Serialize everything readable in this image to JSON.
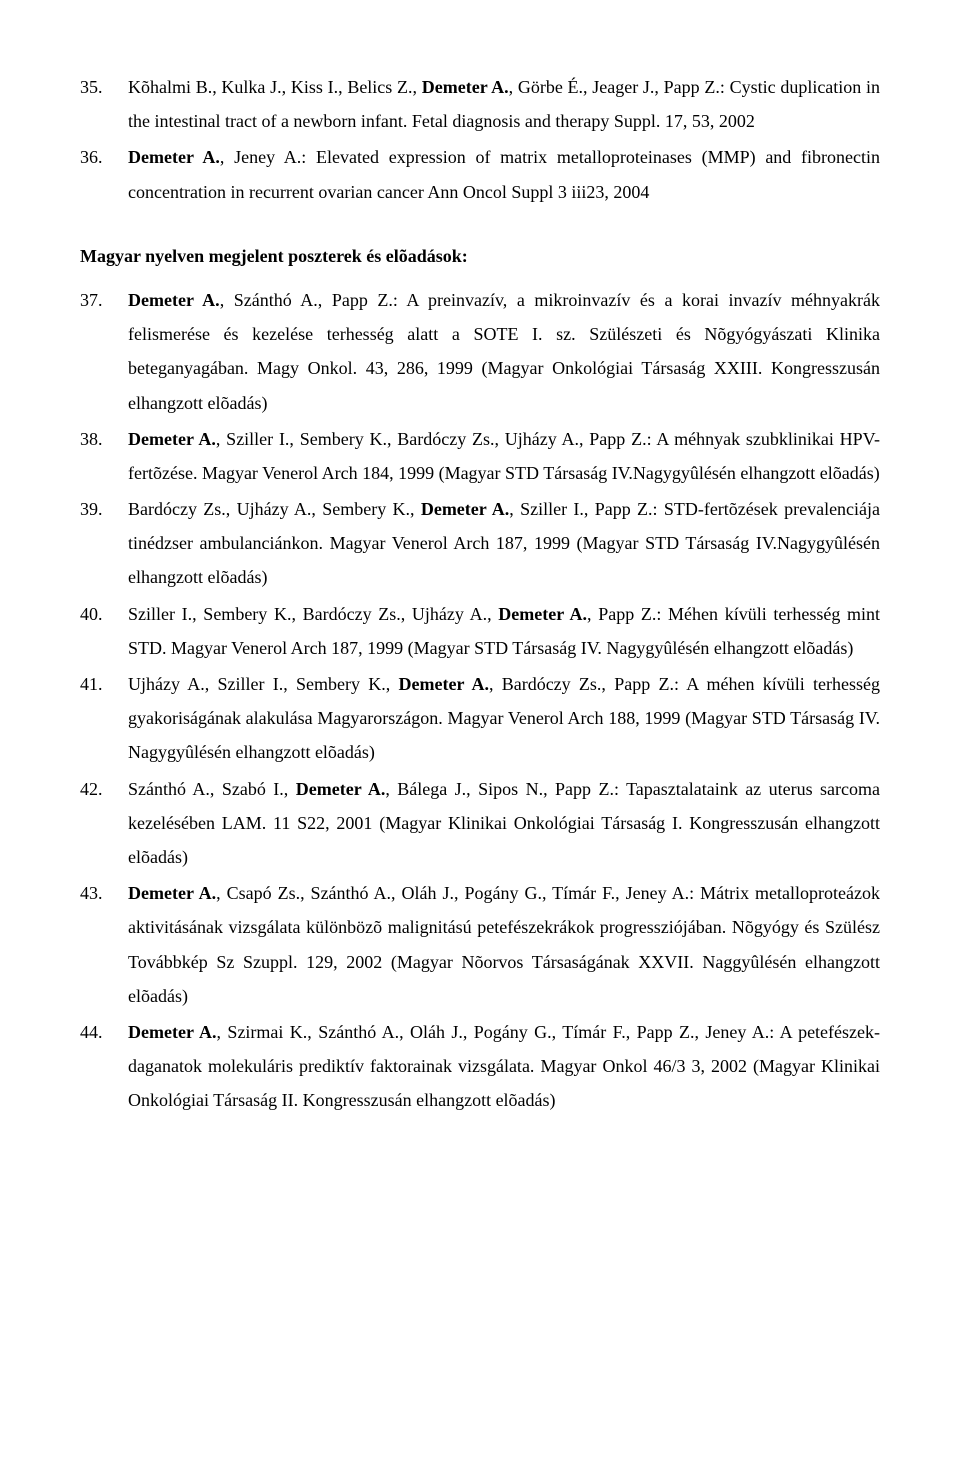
{
  "entries_top": [
    {
      "num": "35.",
      "html": "Kõhalmi B., Kulka J., Kiss I., Belics Z., <b>Demeter A.</b>, Görbe É., Jeager J., Papp Z.: Cystic duplication in the intestinal tract of a newborn infant. Fetal diagnosis and therapy Suppl. 17, 53, 2002"
    },
    {
      "num": "36.",
      "html": "<b>Demeter A.</b>, Jeney A.: Elevated expression of matrix metalloproteinases (MMP) and fibronectin concentration in recurrent ovarian cancer Ann Oncol  Suppl 3 iii23, 2004"
    }
  ],
  "section_heading": "Magyar nyelven megjelent poszterek és elõadások:",
  "entries_bottom": [
    {
      "num": "37.",
      "html": "<b>Demeter A.</b>, Szánthó A., Papp Z.: A preinvazív, a mikroinvazív és a korai invazív méhnyakrák felismerése és kezelése terhesség alatt a SOTE I. sz. Szülészeti és Nõgyógyászati Klinika beteganyagában. Magy Onkol. 43, 286, 1999 (Magyar Onkológiai Társaság XXIII. Kongresszusán elhangzott elõadás)"
    },
    {
      "num": "38.",
      "html": "<b>Demeter A.</b>, Sziller I., Sembery K., Bardóczy Zs., Ujházy A., Papp Z.: A méhnyak szubklinikai HPV-fertõzése. Magyar Venerol Arch 184, 1999 (Magyar STD Társaság IV.Nagygyûlésén elhangzott elõadás)"
    },
    {
      "num": "39.",
      "html": "Bardóczy Zs., Ujházy A., Sembery K., <b>Demeter A.</b>, Sziller I., Papp Z.: STD-fertõzések prevalenciája tinédzser ambulanciánkon. Magyar Venerol Arch 187, 1999 (Magyar STD Társaság IV.Nagygyûlésén elhangzott elõadás)"
    },
    {
      "num": "40.",
      "html": "Sziller I., Sembery K., Bardóczy Zs., Ujházy A., <b>Demeter A.</b>, Papp Z.: Méhen kívüli terhesség mint STD. Magyar Venerol Arch 187, 1999 (Magyar STD Társaság IV. Nagygyûlésén elhangzott elõadás)"
    },
    {
      "num": "41.",
      "html": "Ujházy A., Sziller I., Sembery K., <b>Demeter A.</b>, Bardóczy Zs., Papp Z.: A méhen kívüli terhesség gyakoriságának alakulása Magyarországon. Magyar Venerol Arch 188, 1999 (Magyar STD Társaság IV. Nagygyûlésén elhangzott elõadás)"
    },
    {
      "num": "42.",
      "html": "Szánthó A., Szabó I., <b>Demeter A.</b>, Bálega J., Sipos N., Papp Z.: Tapasztalataink az uterus sarcoma kezelésében LAM. 11 S22, 2001 (Magyar Klinikai Onkológiai Társaság I. Kongresszusán elhangzott elõadás)"
    },
    {
      "num": "43.",
      "html": "<b>Demeter A.</b>, Csapó Zs., Szánthó A., Oláh J., Pogány G., Tímár F., Jeney A.: Mátrix metalloproteázok aktivitásának vizsgálata különbözõ malignitású petefészekrákok progressziójában. Nõgyógy és Szülész Továbbkép Sz Szuppl. 129, 2002 (Magyar Nõorvos Társaságának XXVII. Naggyûlésén elhangzott elõadás)"
    },
    {
      "num": "44.",
      "html": "<b>Demeter A.</b>, Szirmai K., Szánthó A., Oláh J., Pogány G., Tímár F., Papp Z., Jeney A.: A petefészek-daganatok molekuláris prediktív faktorainak vizsgálata. Magyar Onkol 46/3 3, 2002 (Magyar Klinikai Onkológiai Társaság II. Kongresszusán elhangzott elõadás)"
    }
  ]
}
